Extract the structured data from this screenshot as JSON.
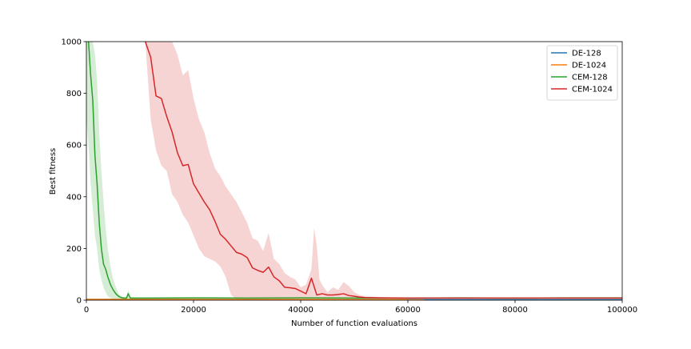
{
  "chart_data": {
    "type": "line",
    "title": "",
    "xlabel": "Number of function evaluations",
    "ylabel": "Best fitness",
    "xlim": [
      0,
      100000
    ],
    "ylim": [
      0,
      1000
    ],
    "xticks": [
      0,
      20000,
      40000,
      60000,
      80000,
      100000
    ],
    "yticks": [
      0,
      200,
      400,
      600,
      800,
      1000
    ],
    "grid": false,
    "legend_position": "top-right",
    "series": [
      {
        "name": "DE-128",
        "color": "#1f77b4",
        "x": [
          0,
          50000,
          100000
        ],
        "y": [
          3,
          2,
          2
        ]
      },
      {
        "name": "DE-1024",
        "color": "#ff7f0e",
        "x": [
          0,
          63000
        ],
        "y": [
          3,
          2
        ]
      },
      {
        "name": "CEM-128",
        "color": "#2ca02c",
        "x": [
          0,
          400,
          800,
          1200,
          1600,
          2000,
          2400,
          2800,
          3200,
          3600,
          4000,
          4500,
          5000,
          5500,
          6000,
          6500,
          7000,
          7500,
          7800,
          8200,
          10000,
          20000,
          30000,
          40000,
          50000,
          60000,
          70000,
          80000,
          90000,
          100000
        ],
        "y": [
          1150,
          1000,
          870,
          770,
          560,
          450,
          300,
          200,
          140,
          120,
          90,
          60,
          40,
          25,
          15,
          10,
          8,
          8,
          25,
          8,
          8,
          9,
          8,
          9,
          8,
          8,
          9,
          8,
          9,
          9
        ],
        "band_upper": [
          1000,
          1000,
          1000,
          1000,
          950,
          850,
          650,
          500,
          380,
          280,
          200,
          130,
          80,
          50,
          25,
          15,
          12,
          12,
          40,
          12,
          10,
          10,
          10,
          10,
          10,
          10,
          10,
          10,
          10,
          10
        ],
        "band_lower": [
          700,
          600,
          450,
          350,
          250,
          200,
          120,
          80,
          50,
          30,
          15,
          8,
          5,
          4,
          4,
          4,
          4,
          4,
          6,
          4,
          5,
          5,
          5,
          5,
          5,
          5,
          5,
          5,
          5,
          5
        ]
      },
      {
        "name": "CEM-1024",
        "color": "#d62728",
        "x": [
          11000,
          12000,
          13000,
          14000,
          15000,
          16000,
          17000,
          18000,
          19000,
          20000,
          21000,
          22000,
          23000,
          24000,
          25000,
          26000,
          27000,
          28000,
          29000,
          30000,
          31000,
          32000,
          33000,
          34000,
          35000,
          36000,
          37000,
          38000,
          39000,
          40000,
          41000,
          42000,
          43000,
          44000,
          45000,
          46000,
          47000,
          48000,
          49000,
          50000,
          51000,
          52000,
          55000,
          60000,
          65000,
          70000,
          80000,
          90000,
          100000
        ],
        "y": [
          1000,
          940,
          790,
          780,
          710,
          650,
          570,
          520,
          525,
          450,
          415,
          380,
          350,
          305,
          255,
          235,
          210,
          185,
          178,
          165,
          125,
          115,
          108,
          128,
          90,
          75,
          50,
          48,
          45,
          35,
          25,
          85,
          20,
          25,
          20,
          20,
          22,
          25,
          18,
          15,
          12,
          10,
          9,
          8,
          8,
          8,
          8,
          8,
          8
        ],
        "band_x": [
          2800,
          5000,
          8000,
          10000,
          11000,
          12000,
          13000,
          14000,
          15000,
          16000,
          17000,
          18000,
          19000,
          20000,
          21000,
          22000,
          23000,
          24000,
          25000,
          26000,
          27000,
          28000,
          29000,
          30000,
          31000,
          32000,
          33000,
          34000,
          35000,
          36000,
          37000,
          38000,
          39000,
          40000,
          41000,
          42000,
          42500,
          43000,
          43500,
          44000,
          45000,
          46000,
          47000,
          48000,
          49000,
          50000,
          51000,
          52000,
          55000,
          60000,
          70000,
          100000
        ],
        "band_upper": [
          1000,
          1000,
          1000,
          1000,
          1000,
          1000,
          1000,
          1000,
          1000,
          1000,
          950,
          870,
          890,
          780,
          700,
          650,
          570,
          510,
          480,
          440,
          410,
          380,
          340,
          300,
          240,
          230,
          190,
          260,
          160,
          140,
          105,
          90,
          80,
          50,
          60,
          120,
          280,
          210,
          80,
          60,
          30,
          50,
          40,
          70,
          55,
          30,
          20,
          15,
          12,
          11,
          11,
          11
        ],
        "band_lower": [
          1000,
          1000,
          1000,
          1000,
          1000,
          700,
          580,
          520,
          500,
          410,
          380,
          330,
          300,
          250,
          200,
          170,
          160,
          150,
          130,
          90,
          20,
          5,
          5,
          5,
          5,
          5,
          5,
          5,
          5,
          5,
          5,
          5,
          5,
          5,
          5,
          5,
          5,
          5,
          5,
          5,
          5,
          5,
          5,
          5,
          5,
          5,
          5,
          5,
          5,
          5,
          5,
          5
        ]
      }
    ]
  }
}
